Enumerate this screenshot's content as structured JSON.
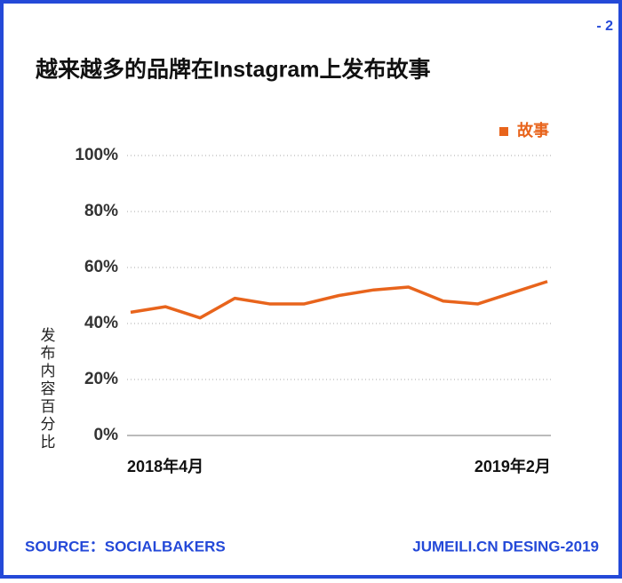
{
  "page_number": "- 2",
  "footer": {
    "source": "SOURCE：SOCIALBAKERS",
    "credit": "JUMEILI.CN DESING-2019"
  },
  "chart_data": {
    "type": "line",
    "title": "越来越多的品牌在Instagram上发布故事",
    "y_label": "发布内容百分比",
    "categories": [
      null,
      "2018年4月",
      null,
      null,
      null,
      null,
      null,
      null,
      null,
      null,
      null,
      "2019年2月",
      null
    ],
    "series": [
      {
        "name": "故事",
        "color": "#e8641c",
        "values": [
          44,
          46,
          42,
          49,
          47,
          47,
          50,
          52,
          53,
          48,
          47,
          51,
          55
        ]
      }
    ],
    "ylim": [
      0,
      100
    ],
    "yticks": [
      {
        "value": 0,
        "label": "0%"
      },
      {
        "value": 20,
        "label": "20%"
      },
      {
        "value": 40,
        "label": "40%"
      },
      {
        "value": 60,
        "label": "60%"
      },
      {
        "value": 80,
        "label": "80%"
      },
      {
        "value": 100,
        "label": "100%"
      }
    ],
    "grid": true,
    "legend": "top-right"
  }
}
